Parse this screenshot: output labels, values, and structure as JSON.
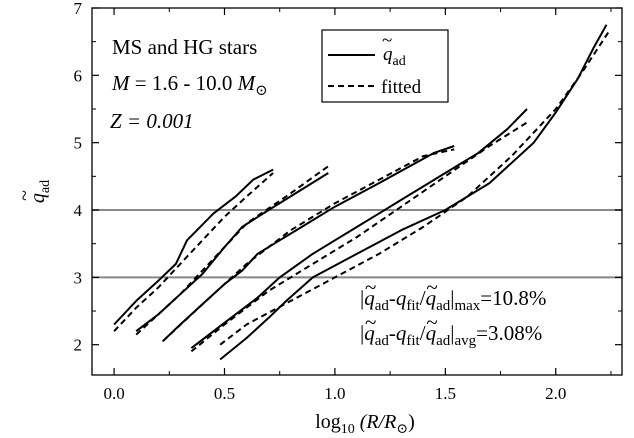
{
  "chart_data": {
    "type": "line",
    "xlabel": "log",
    "xlabel_sub": "10",
    "xlabel_rest": " (R/R",
    "xlabel_sun": "⊙",
    "xlabel_close": ")",
    "ylabel": "q",
    "ylabel_sub": "ad",
    "ylabel_tilde": "~",
    "xlim": [
      -0.1,
      2.3
    ],
    "ylim": [
      1.55,
      7.0
    ],
    "xticks": [
      0.0,
      0.5,
      1.0,
      1.5,
      2.0
    ],
    "xtick_labels": [
      "0.0",
      "0.5",
      "1.0",
      "1.5",
      "2.0"
    ],
    "yticks": [
      2,
      3,
      4,
      5,
      6,
      7
    ],
    "ytick_labels": [
      "2",
      "3",
      "4",
      "5",
      "6",
      "7"
    ],
    "hlines": [
      3.0,
      4.0
    ],
    "hline_color": "#888888",
    "grid": false,
    "annotations": {
      "line1": "MS and HG stars",
      "line2_prefix": "M",
      "line2_mid": " = 1.6 - 10.0 ",
      "line2_unit": "M",
      "line2_sun": "⊙",
      "line3": "Z = 0.001",
      "err_max_sub": "max",
      "err_max_val": "=10.8%",
      "err_avg_sub": "avg",
      "err_avg_val": "=3.08%",
      "err_q": "q",
      "err_ad": "ad",
      "err_fit": "fit",
      "err_sep": "-",
      "err_bar": "|",
      "err_slash": "/"
    },
    "legend": {
      "position": "top-center",
      "entries": [
        {
          "label": "q",
          "label_sub": "ad",
          "tilde": true,
          "style": "solid"
        },
        {
          "label": "fitted",
          "style": "dashed"
        }
      ]
    },
    "series": [
      {
        "name": "q̃ad",
        "style": "solid",
        "x": [
          0.0,
          0.1,
          0.2,
          0.28,
          0.33,
          0.45,
          0.55,
          0.63,
          0.72
        ],
        "y": [
          2.3,
          2.65,
          2.95,
          3.2,
          3.55,
          3.95,
          4.2,
          4.45,
          4.6
        ]
      },
      {
        "name": "fitted",
        "style": "dashed",
        "x": [
          0.0,
          0.1,
          0.2,
          0.3,
          0.4,
          0.5,
          0.6,
          0.72
        ],
        "y": [
          2.2,
          2.55,
          2.85,
          3.2,
          3.55,
          3.9,
          4.2,
          4.55
        ]
      },
      {
        "name": "q̃ad",
        "style": "solid",
        "x": [
          0.1,
          0.2,
          0.3,
          0.4,
          0.5,
          0.58,
          0.7,
          0.97
        ],
        "y": [
          2.2,
          2.45,
          2.75,
          3.05,
          3.45,
          3.75,
          4.0,
          4.55
        ]
      },
      {
        "name": "fitted",
        "style": "dashed",
        "x": [
          0.1,
          0.2,
          0.3,
          0.4,
          0.5,
          0.6,
          0.8,
          0.97
        ],
        "y": [
          2.15,
          2.45,
          2.75,
          3.1,
          3.45,
          3.8,
          4.25,
          4.65
        ]
      },
      {
        "name": "q̃ad",
        "style": "solid",
        "x": [
          0.22,
          0.3,
          0.4,
          0.5,
          0.58,
          0.65,
          0.75,
          0.85,
          1.0,
          1.2,
          1.45,
          1.54
        ],
        "y": [
          2.05,
          2.3,
          2.6,
          2.9,
          3.1,
          3.35,
          3.55,
          3.75,
          4.05,
          4.4,
          4.85,
          4.95
        ]
      },
      {
        "name": "fitted",
        "style": "dashed",
        "x": [
          0.22,
          0.4,
          0.6,
          0.8,
          1.0,
          1.2,
          1.4,
          1.54
        ],
        "y": [
          2.05,
          2.6,
          3.2,
          3.7,
          4.1,
          4.45,
          4.8,
          4.9
        ]
      },
      {
        "name": "q̃ad",
        "style": "solid",
        "x": [
          0.35,
          0.45,
          0.55,
          0.65,
          0.75,
          0.9,
          1.1,
          1.3,
          1.5,
          1.65,
          1.78,
          1.87
        ],
        "y": [
          1.95,
          2.2,
          2.45,
          2.7,
          3.0,
          3.35,
          3.75,
          4.15,
          4.55,
          4.85,
          5.2,
          5.5
        ]
      },
      {
        "name": "fitted",
        "style": "dashed",
        "x": [
          0.35,
          0.5,
          0.7,
          0.9,
          1.1,
          1.3,
          1.5,
          1.7,
          1.87
        ],
        "y": [
          1.9,
          2.3,
          2.8,
          3.2,
          3.6,
          4.05,
          4.5,
          4.95,
          5.3
        ]
      },
      {
        "name": "q̃ad",
        "style": "solid",
        "x": [
          0.48,
          0.6,
          0.7,
          0.78,
          0.9,
          1.1,
          1.3,
          1.5,
          1.7,
          1.9,
          2.0,
          2.1,
          2.17,
          2.23
        ],
        "y": [
          1.78,
          2.1,
          2.4,
          2.65,
          3.0,
          3.35,
          3.7,
          4.0,
          4.4,
          5.0,
          5.45,
          5.95,
          6.4,
          6.75
        ]
      },
      {
        "name": "fitted",
        "style": "dashed",
        "x": [
          0.48,
          0.6,
          0.8,
          1.0,
          1.2,
          1.4,
          1.6,
          1.8,
          2.0,
          2.12,
          2.24
        ],
        "y": [
          2.0,
          2.3,
          2.65,
          3.0,
          3.35,
          3.75,
          4.2,
          4.8,
          5.5,
          6.05,
          6.65
        ]
      }
    ]
  }
}
